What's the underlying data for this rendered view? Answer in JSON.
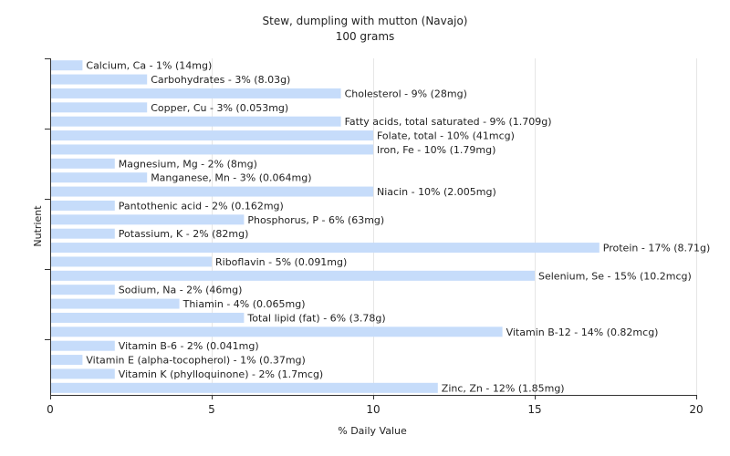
{
  "chart_data": {
    "type": "bar",
    "orientation": "horizontal",
    "title": "Stew, dumpling with mutton (Navajo)",
    "subtitle": "100 grams",
    "xlabel": "% Daily Value",
    "ylabel": "Nutrient",
    "xlim": [
      0,
      20
    ],
    "xticks": [
      0,
      5,
      10,
      15,
      20
    ],
    "grid": true,
    "legend": "none",
    "bar_color": "#c6dcfa",
    "grid_color": "#e6e6e6",
    "categories": [
      "Calcium, Ca",
      "Carbohydrates",
      "Cholesterol",
      "Copper, Cu",
      "Fatty acids, total saturated",
      "Folate, total",
      "Iron, Fe",
      "Magnesium, Mg",
      "Manganese, Mn",
      "Niacin",
      "Pantothenic acid",
      "Phosphorus, P",
      "Potassium, K",
      "Protein",
      "Riboflavin",
      "Selenium, Se",
      "Sodium, Na",
      "Thiamin",
      "Total lipid (fat)",
      "Vitamin B-12",
      "Vitamin B-6",
      "Vitamin E (alpha-tocopherol)",
      "Vitamin K (phylloquinone)",
      "Zinc, Zn"
    ],
    "values": [
      1,
      3,
      9,
      3,
      9,
      10,
      10,
      2,
      3,
      10,
      2,
      6,
      2,
      17,
      5,
      15,
      2,
      4,
      6,
      14,
      2,
      1,
      2,
      12
    ],
    "labels": [
      "Calcium, Ca - 1% (14mg)",
      "Carbohydrates - 3% (8.03g)",
      "Cholesterol - 9% (28mg)",
      "Copper, Cu - 3% (0.053mg)",
      "Fatty acids, total saturated - 9% (1.709g)",
      "Folate, total - 10% (41mcg)",
      "Iron, Fe - 10% (1.79mg)",
      "Magnesium, Mg - 2% (8mg)",
      "Manganese, Mn - 3% (0.064mg)",
      "Niacin - 10% (2.005mg)",
      "Pantothenic acid - 2% (0.162mg)",
      "Phosphorus, P - 6% (63mg)",
      "Potassium, K - 2% (82mg)",
      "Protein - 17% (8.71g)",
      "Riboflavin - 5% (0.091mg)",
      "Selenium, Se - 15% (10.2mcg)",
      "Sodium, Na - 2% (46mg)",
      "Thiamin - 4% (0.065mg)",
      "Total lipid (fat) - 6% (3.78g)",
      "Vitamin B-12 - 14% (0.82mcg)",
      "Vitamin B-6 - 2% (0.041mg)",
      "Vitamin E (alpha-tocopherol) - 1% (0.37mg)",
      "Vitamin K (phylloquinone) - 2% (1.7mcg)",
      "Zinc, Zn - 12% (1.85mg)"
    ]
  }
}
